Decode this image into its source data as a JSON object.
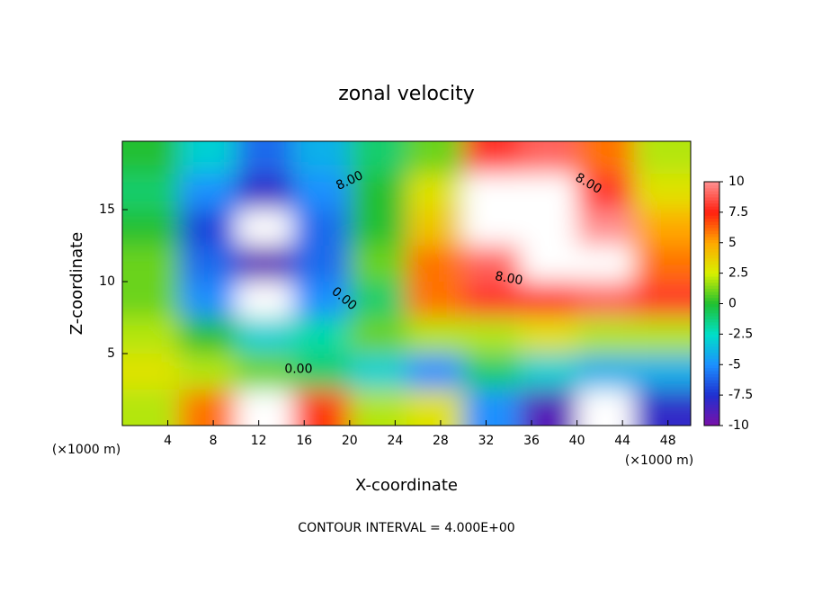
{
  "chart_data": {
    "type": "contour",
    "title": "zonal velocity",
    "xlabel": "X-coordinate",
    "ylabel": "Z-coordinate",
    "x_unit": "(×1000 m)",
    "y_unit": "(×1000 m)",
    "footnote": "CONTOUR INTERVAL = 4.000E+00",
    "xlim": [
      0,
      50
    ],
    "ylim": [
      0,
      19.75
    ],
    "xticks": [
      4,
      8,
      12,
      16,
      20,
      24,
      28,
      32,
      36,
      40,
      44,
      48
    ],
    "yticks": [
      5,
      10,
      15
    ],
    "x": [
      2.5,
      7.5,
      12.5,
      17.5,
      22.5,
      27.5,
      32.5,
      37.5,
      42.5,
      47.5
    ],
    "y": [
      18.75,
      16.25,
      13.75,
      11.25,
      8.75,
      6.25,
      3.75,
      1.25
    ],
    "z": [
      [
        0,
        -3,
        -6,
        -4,
        -1,
        1,
        8,
        9,
        6,
        2
      ],
      [
        -1,
        -5,
        -8,
        -5,
        0,
        3,
        11,
        11,
        8,
        3
      ],
      [
        0,
        -7,
        -11,
        -6,
        0,
        4,
        11,
        12,
        10,
        5
      ],
      [
        1,
        -6,
        -9,
        -6,
        1,
        6,
        9,
        11,
        11,
        6
      ],
      [
        1,
        -5,
        -11,
        -5,
        -1,
        6,
        8,
        8,
        9,
        8
      ],
      [
        2,
        0,
        -3,
        -2,
        1,
        2,
        2,
        3,
        2,
        2
      ],
      [
        3,
        2,
        1,
        -1,
        -3,
        -5,
        -1,
        -3,
        -4,
        -4
      ],
      [
        2,
        6,
        11,
        7,
        2,
        3,
        -5,
        -9,
        -11,
        -8
      ]
    ],
    "colorbar": {
      "ticks": [
        10,
        7.5,
        5,
        2.5,
        0,
        -2.5,
        -5,
        -7.5,
        -10
      ],
      "colors": [
        "#ff9090",
        "#ff2010",
        "#ffa800",
        "#d8f000",
        "#20c030",
        "#00e0c8",
        "#1c90ff",
        "#2030d0",
        "#7a10a8"
      ],
      "out_of_range": "#ffffff"
    },
    "contour_labels": [
      {
        "text": "8.00",
        "x": 20,
        "y": 17,
        "angle": -25
      },
      {
        "text": "8.00",
        "x": 41,
        "y": 16.8,
        "angle": 30
      },
      {
        "text": "8.00",
        "x": 34,
        "y": 10.2,
        "angle": 10
      },
      {
        "text": "0.00",
        "x": 19.5,
        "y": 8.8,
        "angle": 40
      },
      {
        "text": "0.00",
        "x": 15.5,
        "y": 3.9,
        "angle": 0
      }
    ]
  }
}
